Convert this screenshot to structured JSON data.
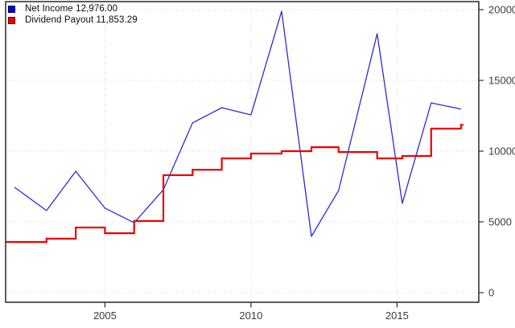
{
  "chart_data": {
    "type": "line",
    "title": "",
    "x_axis": {
      "ticks": [
        2005,
        2010,
        2015
      ],
      "range": [
        2001.6,
        2017.8
      ]
    },
    "y_axis": {
      "ticks": [
        0,
        5000,
        10000,
        15000,
        20000
      ],
      "range": [
        0,
        20000
      ],
      "side": "right"
    },
    "grid": {
      "style": "dotted",
      "color": "#d2d2d2",
      "on": true
    },
    "legend_position": "top-left",
    "series": [
      {
        "name": "Net Income",
        "legend_label": "Net Income 12,976.00",
        "color": "#2b2bd6",
        "swatch_color": "#0000dd",
        "style": "line",
        "line_width": 1.3,
        "x": [
          2001.9,
          2003,
          2004,
          2005,
          2006,
          2007,
          2008,
          2009,
          2010,
          2011.05,
          2012.07,
          2013,
          2014.32,
          2015.18,
          2016.17,
          2017.19
        ],
        "values": [
          7450,
          5800,
          8580,
          5970,
          4940,
          7270,
          12000,
          13070,
          12560,
          19890,
          3980,
          7220,
          18300,
          6310,
          13410,
          12976
        ]
      },
      {
        "name": "Dividend Payout",
        "legend_label": "Dividend Payout 11,853.29",
        "color": "#ee0000",
        "swatch_color": "#ee0000",
        "style": "step",
        "line_width": 2.2,
        "x": [
          2001.6,
          2003,
          2004,
          2005,
          2006,
          2007,
          2008,
          2009,
          2010,
          2011.05,
          2012.07,
          2013,
          2014.32,
          2015.18,
          2016.17,
          2017.19
        ],
        "values": [
          3580,
          3810,
          4600,
          4200,
          5060,
          8300,
          8690,
          9490,
          9830,
          10000,
          10280,
          9940,
          9490,
          9660,
          11590,
          11853.29
        ]
      }
    ],
    "last_values": {
      "net_income": "12,976.00",
      "dividend_payout": "11,853.29"
    }
  }
}
